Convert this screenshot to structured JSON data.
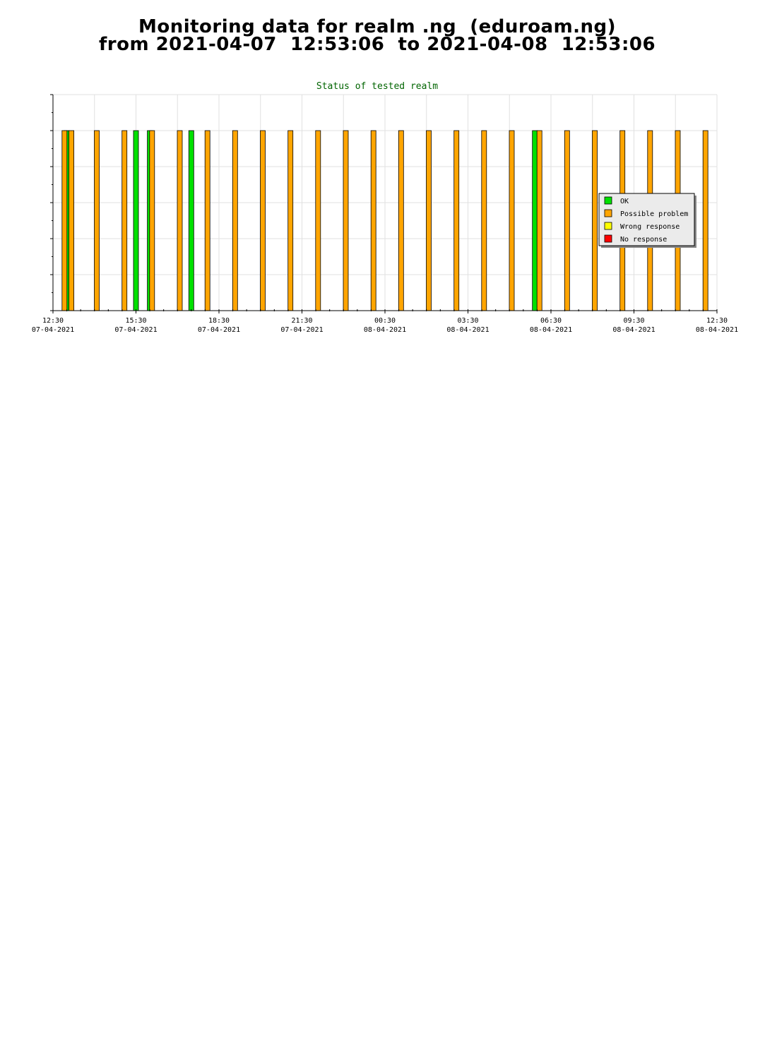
{
  "page": {
    "title_line1": "Monitoring data for realm .ng  (eduroam.ng)",
    "title_line2": "from 2021-04-07  12:53:06  to 2021-04-08  12:53:06"
  },
  "chart_data": {
    "type": "bar",
    "title": "Status of tested realm",
    "xlabel": "",
    "ylabel": "",
    "grid": true,
    "legend_position": "right",
    "xlim": [
      "2021-04-07 12:30",
      "2021-04-08 12:30"
    ],
    "ylim": [
      0,
      6
    ],
    "y_ticks": [
      0,
      1,
      2,
      3,
      4,
      5,
      6
    ],
    "x_ticks": [
      {
        "time": "2021-04-07 12:30",
        "label1": "12:30",
        "label2": "07-04-2021"
      },
      {
        "time": "2021-04-07 15:30",
        "label1": "15:30",
        "label2": "07-04-2021"
      },
      {
        "time": "2021-04-07 18:30",
        "label1": "18:30",
        "label2": "07-04-2021"
      },
      {
        "time": "2021-04-07 21:30",
        "label1": "21:30",
        "label2": "07-04-2021"
      },
      {
        "time": "2021-04-08 00:30",
        "label1": "00:30",
        "label2": "08-04-2021"
      },
      {
        "time": "2021-04-08 03:30",
        "label1": "03:30",
        "label2": "08-04-2021"
      },
      {
        "time": "2021-04-08 06:30",
        "label1": "06:30",
        "label2": "08-04-2021"
      },
      {
        "time": "2021-04-08 09:30",
        "label1": "09:30",
        "label2": "08-04-2021"
      },
      {
        "time": "2021-04-08 12:30",
        "label1": "12:30",
        "label2": "08-04-2021"
      }
    ],
    "series": [
      {
        "name": "OK",
        "color": "#00e000",
        "points": [
          {
            "time": "2021-04-07 13:00",
            "value": 5
          },
          {
            "time": "2021-04-07 15:30",
            "value": 5
          },
          {
            "time": "2021-04-07 16:00",
            "value": 5
          },
          {
            "time": "2021-04-07 17:30",
            "value": 5
          },
          {
            "time": "2021-04-08 05:55",
            "value": 5
          }
        ]
      },
      {
        "name": "Possible problem",
        "color": "#ffa500",
        "points": [
          {
            "time": "2021-04-07 12:55",
            "value": 5
          },
          {
            "time": "2021-04-07 13:10",
            "value": 5
          },
          {
            "time": "2021-04-07 14:05",
            "value": 5
          },
          {
            "time": "2021-04-07 15:05",
            "value": 5
          },
          {
            "time": "2021-04-07 16:05",
            "value": 5
          },
          {
            "time": "2021-04-07 17:05",
            "value": 5
          },
          {
            "time": "2021-04-07 18:05",
            "value": 5
          },
          {
            "time": "2021-04-07 19:05",
            "value": 5
          },
          {
            "time": "2021-04-07 20:05",
            "value": 5
          },
          {
            "time": "2021-04-07 21:05",
            "value": 5
          },
          {
            "time": "2021-04-07 22:05",
            "value": 5
          },
          {
            "time": "2021-04-07 23:05",
            "value": 5
          },
          {
            "time": "2021-04-08 00:05",
            "value": 5
          },
          {
            "time": "2021-04-08 01:05",
            "value": 5
          },
          {
            "time": "2021-04-08 02:05",
            "value": 5
          },
          {
            "time": "2021-04-08 03:05",
            "value": 5
          },
          {
            "time": "2021-04-08 04:05",
            "value": 5
          },
          {
            "time": "2021-04-08 05:05",
            "value": 5
          },
          {
            "time": "2021-04-08 06:05",
            "value": 5
          },
          {
            "time": "2021-04-08 07:05",
            "value": 5
          },
          {
            "time": "2021-04-08 08:05",
            "value": 5
          },
          {
            "time": "2021-04-08 09:05",
            "value": 5
          },
          {
            "time": "2021-04-08 10:05",
            "value": 5
          },
          {
            "time": "2021-04-08 11:05",
            "value": 5
          },
          {
            "time": "2021-04-08 12:05",
            "value": 5
          }
        ]
      },
      {
        "name": "Wrong response",
        "color": "#ffff00",
        "points": []
      },
      {
        "name": "No response",
        "color": "#ff0000",
        "points": []
      }
    ]
  }
}
